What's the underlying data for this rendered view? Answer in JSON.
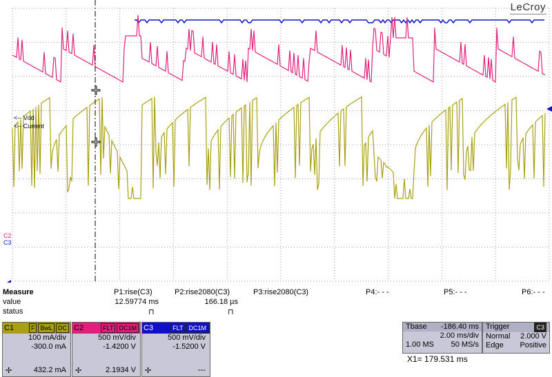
{
  "brand": "LeCroy",
  "trace_labels": {
    "vdd": "<-- Vdd",
    "current": "<-- Current",
    "c2": "C2",
    "c3": "C3"
  },
  "colors": {
    "c1": "#a8a010",
    "c2": "#e0207a",
    "c3": "#1010c8",
    "grid": "#9a9a9a",
    "panel": "#c8c8d8"
  },
  "measure": {
    "title": "Measure",
    "row_value_label": "value",
    "row_status_label": "status",
    "params": [
      {
        "name": "P1:rise(C3)",
        "value": "12.59774 ms",
        "status": "⊓"
      },
      {
        "name": "P2:rise2080(C3)",
        "value": "166.18 µs",
        "status": "⊓"
      },
      {
        "name": "P3:rise2080(C3)",
        "value": "",
        "status": ""
      },
      {
        "name": "P4:- - -",
        "value": "",
        "status": ""
      },
      {
        "name": "P5:- - -",
        "value": "",
        "status": ""
      },
      {
        "name": "P6:- - -",
        "value": "",
        "status": ""
      }
    ]
  },
  "channels": [
    {
      "name": "C1",
      "tags": [
        "F",
        "BwL",
        "DC"
      ],
      "scale": "100 mA/div",
      "offset": "-300.0 mA",
      "readout": "432.2 mA"
    },
    {
      "name": "C2",
      "tags": [
        "FLT",
        "DC1M"
      ],
      "scale": "500 mV/div",
      "offset": "-1.4200 V",
      "readout": "2.1934 V"
    },
    {
      "name": "C3",
      "tags": [
        "FLT",
        "DC1M"
      ],
      "scale": "500 mV/div",
      "offset": "-1.5200 V",
      "readout": "---"
    }
  ],
  "timebase": {
    "label": "Tbase",
    "delay": "-186.40 ms",
    "per_div": "2.00 ms/div",
    "samples": "1.00 MS",
    "rate": "50 MS/s"
  },
  "trigger": {
    "label": "Trigger",
    "source": "C3",
    "mode": "Normal",
    "level": "2.000 V",
    "type": "Edge",
    "slope": "Positive"
  },
  "cursor": {
    "label": "X1=",
    "value": "179.531 ms"
  }
}
